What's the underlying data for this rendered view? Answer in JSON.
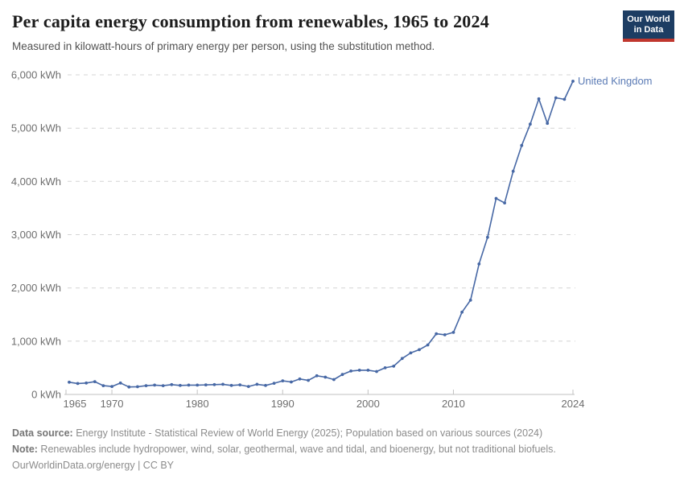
{
  "header": {
    "title": "Per capita energy consumption from renewables, 1965 to 2024",
    "subtitle": "Measured in kilowatt-hours of primary energy per person, using the substitution method.",
    "logo": {
      "line1": "Our World",
      "line2": "in Data",
      "bg_color": "#1d3d63",
      "accent_color": "#c0372e"
    }
  },
  "chart_data": {
    "type": "line",
    "title": "Per capita energy consumption from renewables, 1965 to 2024",
    "xlabel": "",
    "ylabel": "kilowatt-hours of primary energy per person",
    "unit_suffix": "kWh",
    "ylim": [
      0,
      6000
    ],
    "yticks": [
      0,
      1000,
      2000,
      3000,
      4000,
      5000,
      6000
    ],
    "xticks": [
      1965,
      1970,
      1980,
      1990,
      2000,
      2010,
      2024
    ],
    "grid": "horizontal-dashed",
    "legend_position": "end-of-line-label",
    "x": [
      1965,
      1966,
      1967,
      1968,
      1969,
      1970,
      1971,
      1972,
      1973,
      1974,
      1975,
      1976,
      1977,
      1978,
      1979,
      1980,
      1981,
      1982,
      1983,
      1984,
      1985,
      1986,
      1987,
      1988,
      1989,
      1990,
      1991,
      1992,
      1993,
      1994,
      1995,
      1996,
      1997,
      1998,
      1999,
      2000,
      2001,
      2002,
      2003,
      2004,
      2005,
      2006,
      2007,
      2008,
      2009,
      2010,
      2011,
      2012,
      2013,
      2014,
      2015,
      2016,
      2017,
      2018,
      2019,
      2020,
      2021,
      2022,
      2023,
      2024
    ],
    "series": [
      {
        "name": "United Kingdom",
        "color": "#4768a5",
        "label_color": "#5b7bb5",
        "values": [
          230,
          205,
          215,
          240,
          165,
          150,
          215,
          140,
          145,
          165,
          175,
          165,
          185,
          170,
          175,
          175,
          180,
          185,
          190,
          170,
          180,
          150,
          190,
          170,
          210,
          255,
          235,
          290,
          265,
          350,
          325,
          280,
          375,
          440,
          455,
          455,
          430,
          500,
          530,
          675,
          780,
          840,
          930,
          1140,
          1120,
          1165,
          1545,
          1770,
          2450,
          2950,
          3680,
          3595,
          4190,
          4675,
          5075,
          5550,
          5090,
          5570,
          5540,
          5880
        ]
      }
    ]
  },
  "axis_style": {
    "grid_color": "#d4d4d4",
    "axis_color": "#c2c2c2",
    "tick_label_color": "#6e6e6e"
  },
  "footer": {
    "data_source_label": "Data source:",
    "data_source_text": " Energy Institute - Statistical Review of World Energy (2025); Population based on various sources (2024)",
    "note_label": "Note:",
    "note_text": " Renewables include hydropower, wind, solar, geothermal, wave and tidal, and bioenergy, but not traditional biofuels.",
    "license": "OurWorldinData.org/energy | CC BY"
  }
}
